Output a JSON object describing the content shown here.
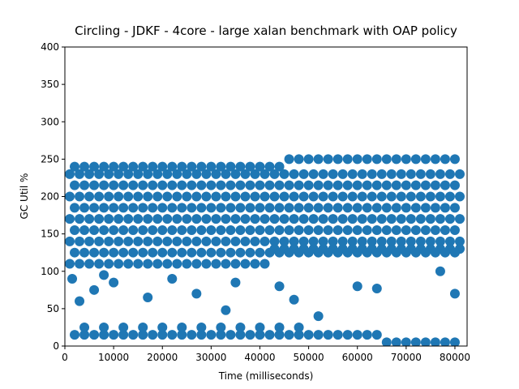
{
  "chart_data": {
    "type": "scatter",
    "title": "Circling - JDKF - 4core -  large xalan benchmark with OAP policy",
    "x_label": "Time (milliseconds)",
    "y_label": "GC Util %",
    "color": "#1f77b4",
    "xlim": [
      0,
      82500
    ],
    "xticks": [
      0,
      10000,
      20000,
      30000,
      40000,
      50000,
      60000,
      70000,
      80000
    ],
    "ylim": [
      0,
      400
    ],
    "yticks": [
      0,
      50,
      100,
      150,
      200,
      250,
      300,
      350,
      400
    ],
    "grid": false,
    "x": [
      1000,
      3000,
      5000,
      7000,
      9000,
      11000,
      13000,
      15000,
      17000,
      19000,
      21000,
      23000,
      25000,
      27000,
      29000,
      31000,
      33000,
      35000,
      37000,
      39000,
      41000,
      43000,
      45000,
      47000,
      49000,
      51000,
      53000,
      55000,
      57000,
      59000,
      61000,
      63000,
      65000,
      67000,
      69000,
      71000,
      73000,
      75000,
      77000,
      79000,
      81000,
      2000,
      4000,
      6000,
      8000,
      10000,
      12000,
      14000,
      16000,
      18000,
      20000,
      22000,
      24000,
      26000,
      28000,
      30000,
      32000,
      34000,
      36000,
      38000,
      40000,
      42000,
      44000,
      46000,
      48000,
      50000,
      52000,
      54000,
      56000,
      58000,
      60000,
      62000,
      64000,
      66000,
      68000,
      70000,
      72000,
      74000,
      76000,
      78000,
      80000,
      1000,
      3000,
      5000,
      7000,
      9000,
      11000,
      13000,
      15000,
      17000,
      19000,
      21000,
      23000,
      25000,
      27000,
      29000,
      31000,
      33000,
      35000,
      37000,
      39000,
      41000,
      43000,
      45000,
      47000,
      49000,
      51000,
      53000,
      55000,
      57000,
      59000,
      61000,
      63000,
      65000,
      67000,
      69000,
      71000,
      73000,
      75000,
      77000,
      79000,
      81000,
      2000,
      4000,
      6000,
      8000,
      10000,
      12000,
      14000,
      16000,
      18000,
      20000,
      22000,
      24000,
      26000,
      28000,
      30000,
      32000,
      34000,
      36000,
      38000,
      40000,
      42000,
      44000,
      46000,
      48000,
      50000,
      52000,
      54000,
      56000,
      58000,
      60000,
      62000,
      64000,
      66000,
      68000,
      70000,
      72000,
      74000,
      76000,
      78000,
      80000,
      1000,
      3000,
      5000,
      7000,
      9000,
      11000,
      13000,
      15000,
      17000,
      19000,
      21000,
      23000,
      25000,
      27000,
      29000,
      31000,
      33000,
      35000,
      37000,
      39000,
      41000,
      43000,
      45000,
      47000,
      49000,
      51000,
      53000,
      55000,
      57000,
      59000,
      61000,
      63000,
      65000,
      67000,
      69000,
      71000,
      73000,
      75000,
      77000,
      79000,
      81000,
      2000,
      4000,
      6000,
      8000,
      10000,
      12000,
      14000,
      16000,
      18000,
      20000,
      22000,
      24000,
      26000,
      28000,
      30000,
      32000,
      34000,
      36000,
      38000,
      40000,
      42000,
      44000,
      46000,
      48000,
      50000,
      52000,
      54000,
      56000,
      58000,
      60000,
      62000,
      64000,
      66000,
      68000,
      70000,
      72000,
      74000,
      76000,
      78000,
      80000,
      1000,
      3000,
      5000,
      7000,
      9000,
      11000,
      13000,
      15000,
      17000,
      19000,
      21000,
      23000,
      25000,
      27000,
      29000,
      31000,
      33000,
      35000,
      37000,
      39000,
      41000,
      43000,
      45000,
      47000,
      49000,
      51000,
      53000,
      55000,
      57000,
      59000,
      61000,
      63000,
      65000,
      67000,
      69000,
      71000,
      73000,
      75000,
      77000,
      79000,
      81000,
      2000,
      4000,
      6000,
      8000,
      10000,
      12000,
      14000,
      16000,
      18000,
      20000,
      22000,
      24000,
      26000,
      28000,
      30000,
      32000,
      34000,
      36000,
      38000,
      40000,
      42000,
      44000,
      46000,
      48000,
      50000,
      52000,
      54000,
      56000,
      58000,
      60000,
      62000,
      64000,
      66000,
      68000,
      70000,
      72000,
      74000,
      76000,
      78000,
      80000,
      1000,
      3000,
      5000,
      7000,
      9000,
      11000,
      13000,
      15000,
      17000,
      19000,
      21000,
      23000,
      25000,
      27000,
      29000,
      31000,
      33000,
      35000,
      37000,
      39000,
      41000,
      43000,
      45000,
      47000,
      49000,
      51000,
      53000,
      55000,
      57000,
      59000,
      61000,
      63000,
      65000,
      67000,
      69000,
      71000,
      73000,
      75000,
      77000,
      79000,
      81000,
      2000,
      4000,
      6000,
      8000,
      10000,
      12000,
      14000,
      16000,
      18000,
      20000,
      22000,
      24000,
      26000,
      28000,
      30000,
      32000,
      34000,
      36000,
      38000,
      40000,
      42000,
      44000,
      46000,
      48000,
      50000,
      52000,
      54000,
      56000,
      58000,
      60000,
      62000,
      64000,
      66000,
      68000,
      70000,
      72000,
      74000,
      76000,
      78000,
      80000,
      2000,
      4000,
      6000,
      8000,
      10000,
      12000,
      14000,
      16000,
      18000,
      20000,
      22000,
      24000,
      26000,
      28000,
      30000,
      32000,
      34000,
      36000,
      38000,
      40000,
      42000,
      44000,
      46000,
      48000,
      50000,
      52000,
      54000,
      56000,
      58000,
      60000,
      62000,
      64000,
      66000,
      68000,
      70000,
      72000,
      74000,
      76000,
      78000,
      80000,
      4000,
      8000,
      12000,
      16000,
      20000,
      24000,
      28000,
      32000,
      36000,
      40000,
      44000,
      48000,
      3000,
      6000,
      10000,
      17000,
      22000,
      27000,
      33000,
      35000,
      44000,
      47000,
      52000,
      60000,
      64000,
      77000,
      80000,
      1500,
      8000
    ],
    "values": [
      110,
      110,
      110,
      110,
      110,
      110,
      110,
      110,
      110,
      110,
      110,
      110,
      110,
      110,
      110,
      110,
      110,
      110,
      110,
      110,
      110,
      130,
      130,
      130,
      130,
      130,
      130,
      130,
      130,
      130,
      130,
      130,
      130,
      130,
      130,
      130,
      130,
      130,
      130,
      130,
      130,
      125,
      125,
      125,
      125,
      125,
      125,
      125,
      125,
      125,
      125,
      125,
      125,
      125,
      125,
      125,
      125,
      125,
      125,
      125,
      125,
      125,
      125,
      125,
      125,
      125,
      125,
      125,
      125,
      125,
      125,
      125,
      125,
      125,
      125,
      125,
      125,
      125,
      125,
      125,
      125,
      140,
      140,
      140,
      140,
      140,
      140,
      140,
      140,
      140,
      140,
      140,
      140,
      140,
      140,
      140,
      140,
      140,
      140,
      140,
      140,
      140,
      140,
      140,
      140,
      140,
      140,
      140,
      140,
      140,
      140,
      140,
      140,
      140,
      140,
      140,
      140,
      140,
      140,
      140,
      140,
      140,
      155,
      155,
      155,
      155,
      155,
      155,
      155,
      155,
      155,
      155,
      155,
      155,
      155,
      155,
      155,
      155,
      155,
      155,
      155,
      155,
      155,
      155,
      155,
      155,
      155,
      155,
      155,
      155,
      155,
      155,
      155,
      155,
      155,
      155,
      155,
      155,
      155,
      155,
      155,
      155,
      170,
      170,
      170,
      170,
      170,
      170,
      170,
      170,
      170,
      170,
      170,
      170,
      170,
      170,
      170,
      170,
      170,
      170,
      170,
      170,
      170,
      170,
      170,
      170,
      170,
      170,
      170,
      170,
      170,
      170,
      170,
      170,
      170,
      170,
      170,
      170,
      170,
      170,
      170,
      170,
      170,
      185,
      185,
      185,
      185,
      185,
      185,
      185,
      185,
      185,
      185,
      185,
      185,
      185,
      185,
      185,
      185,
      185,
      185,
      185,
      185,
      185,
      185,
      185,
      185,
      185,
      185,
      185,
      185,
      185,
      185,
      185,
      185,
      185,
      185,
      185,
      185,
      185,
      185,
      185,
      185,
      200,
      200,
      200,
      200,
      200,
      200,
      200,
      200,
      200,
      200,
      200,
      200,
      200,
      200,
      200,
      200,
      200,
      200,
      200,
      200,
      200,
      200,
      200,
      200,
      200,
      200,
      200,
      200,
      200,
      200,
      200,
      200,
      200,
      200,
      200,
      200,
      200,
      200,
      200,
      200,
      200,
      215,
      215,
      215,
      215,
      215,
      215,
      215,
      215,
      215,
      215,
      215,
      215,
      215,
      215,
      215,
      215,
      215,
      215,
      215,
      215,
      215,
      215,
      215,
      215,
      215,
      215,
      215,
      215,
      215,
      215,
      215,
      215,
      215,
      215,
      215,
      215,
      215,
      215,
      215,
      215,
      230,
      230,
      230,
      230,
      230,
      230,
      230,
      230,
      230,
      230,
      230,
      230,
      230,
      230,
      230,
      230,
      230,
      230,
      230,
      230,
      230,
      230,
      230,
      230,
      230,
      230,
      230,
      230,
      230,
      230,
      230,
      230,
      230,
      230,
      230,
      230,
      230,
      230,
      230,
      230,
      230,
      240,
      240,
      240,
      240,
      240,
      240,
      240,
      240,
      240,
      240,
      240,
      240,
      240,
      240,
      240,
      240,
      240,
      240,
      240,
      240,
      240,
      240,
      250,
      250,
      250,
      250,
      250,
      250,
      250,
      250,
      250,
      250,
      250,
      250,
      250,
      250,
      250,
      250,
      250,
      250,
      15,
      15,
      15,
      15,
      15,
      15,
      15,
      15,
      15,
      15,
      15,
      15,
      15,
      15,
      15,
      15,
      15,
      15,
      15,
      15,
      15,
      15,
      15,
      15,
      15,
      15,
      15,
      15,
      15,
      15,
      15,
      15,
      5,
      5,
      5,
      5,
      5,
      5,
      5,
      5,
      25,
      25,
      25,
      25,
      25,
      25,
      25,
      25,
      25,
      25,
      25,
      25,
      60,
      75,
      85,
      65,
      90,
      70,
      48,
      85,
      80,
      62,
      40,
      80,
      77,
      100,
      70,
      90,
      95
    ]
  }
}
